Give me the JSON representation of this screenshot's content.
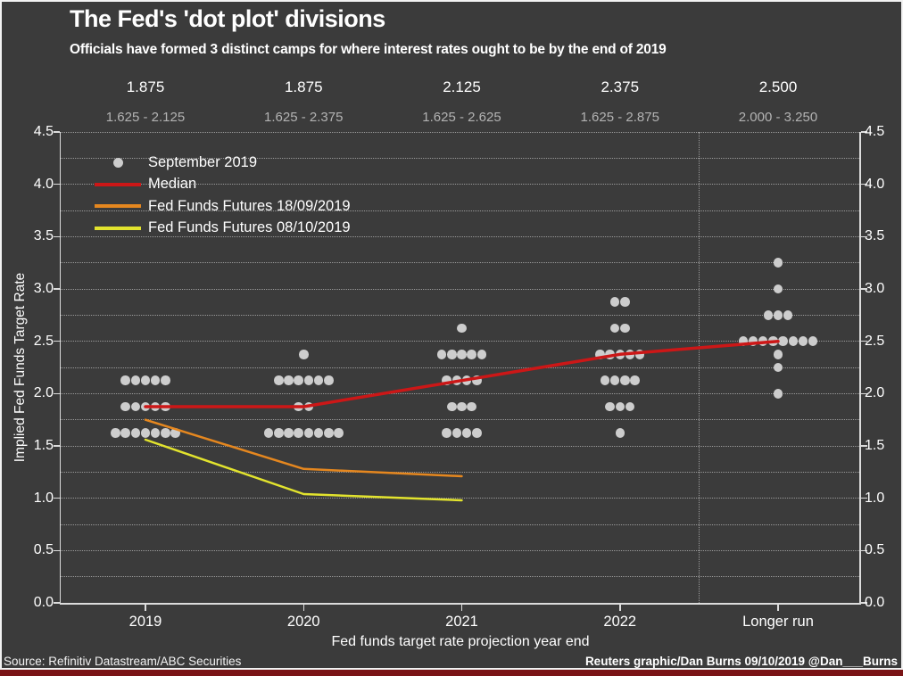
{
  "chart_data": {
    "type": "scatter",
    "title": "The Fed's 'dot plot' divisions",
    "subtitle": "Officials have formed 3 distinct camps for where interest rates ought to be by the end of 2019",
    "categories": [
      "2019",
      "2020",
      "2021",
      "2022",
      "Longer run"
    ],
    "xlabel": "Fed funds target rate projection year end",
    "ylabel": "Implied Fed Funds Target Rate",
    "ylim": [
      0,
      4.5
    ],
    "ytick_step": 0.5,
    "grid_step": 0.25,
    "grid": true,
    "legend_position": "top-left",
    "ytick_labels": [
      "4.5",
      "4.0",
      "3.5",
      "3.0",
      "2.5",
      "2.0",
      "1.5",
      "1.0",
      "0.5",
      "0.0"
    ],
    "median_labels": [
      "1.875",
      "1.875",
      "2.125",
      "2.375",
      "2.500"
    ],
    "range_labels": [
      "1.625 - 2.125",
      "1.625 - 2.375",
      "1.625 - 2.625",
      "1.625 - 2.875",
      "2.000 - 3.250"
    ],
    "separator_after_category": "2022",
    "dot_series": {
      "name": "September 2019",
      "color": "#cdcdcd",
      "stacks": [
        {
          "category": "2019",
          "values": [
            {
              "rate": 2.125,
              "count": 5
            },
            {
              "rate": 1.875,
              "count": 5
            },
            {
              "rate": 1.625,
              "count": 7
            }
          ]
        },
        {
          "category": "2020",
          "values": [
            {
              "rate": 2.375,
              "count": 1
            },
            {
              "rate": 2.125,
              "count": 6
            },
            {
              "rate": 1.875,
              "count": 2
            },
            {
              "rate": 1.625,
              "count": 8
            }
          ]
        },
        {
          "category": "2021",
          "values": [
            {
              "rate": 2.625,
              "count": 1
            },
            {
              "rate": 2.375,
              "count": 5
            },
            {
              "rate": 2.125,
              "count": 4
            },
            {
              "rate": 1.875,
              "count": 3
            },
            {
              "rate": 1.625,
              "count": 4
            }
          ]
        },
        {
          "category": "2022",
          "values": [
            {
              "rate": 2.875,
              "count": 2
            },
            {
              "rate": 2.625,
              "count": 2
            },
            {
              "rate": 2.375,
              "count": 5
            },
            {
              "rate": 2.125,
              "count": 4
            },
            {
              "rate": 1.875,
              "count": 3
            },
            {
              "rate": 1.625,
              "count": 1
            }
          ]
        },
        {
          "category": "Longer run",
          "values": [
            {
              "rate": 3.25,
              "count": 1
            },
            {
              "rate": 3.0,
              "count": 1
            },
            {
              "rate": 2.75,
              "count": 3
            },
            {
              "rate": 2.5,
              "count": 8
            },
            {
              "rate": 2.375,
              "count": 1
            },
            {
              "rate": 2.25,
              "count": 1
            },
            {
              "rate": 2.0,
              "count": 1
            }
          ]
        }
      ]
    },
    "line_series": [
      {
        "name": "Median",
        "color": "#cc1717",
        "width": 3.5,
        "values": [
          1.875,
          1.875,
          2.125,
          2.375,
          2.5
        ]
      },
      {
        "name": "Fed Funds Futures 18/09/2019",
        "color": "#e5871f",
        "width": 2.5,
        "values": [
          1.75,
          1.28,
          1.21,
          null,
          null
        ]
      },
      {
        "name": "Fed Funds Futures 08/10/2019",
        "color": "#e2e32e",
        "width": 2.5,
        "values": [
          1.56,
          1.04,
          0.98,
          null,
          null
        ]
      }
    ]
  },
  "legend": {
    "items": [
      {
        "label": "September 2019",
        "marker": "dot",
        "color": "#cdcdcd"
      },
      {
        "label": "Median",
        "marker": "line",
        "color": "#cc1717"
      },
      {
        "label": "Fed Funds Futures 18/09/2019",
        "marker": "line",
        "color": "#e5871f"
      },
      {
        "label": "Fed Funds Futures 08/10/2019",
        "marker": "line",
        "color": "#e2e32e"
      }
    ]
  },
  "footer": {
    "source": "Source: Refinitiv Datastream/ABC Securities",
    "credit": "Reuters graphic/Dan Burns 09/10/2019 @Dan___Burns"
  },
  "colors": {
    "background": "#3b3b3b",
    "accent_bar": "#7a1416",
    "grid": "#9a9a9a",
    "axis": "#dcdcdc",
    "dot": "#cdcdcd",
    "text": "#ffffff",
    "muted_text": "#b3b3b3"
  }
}
